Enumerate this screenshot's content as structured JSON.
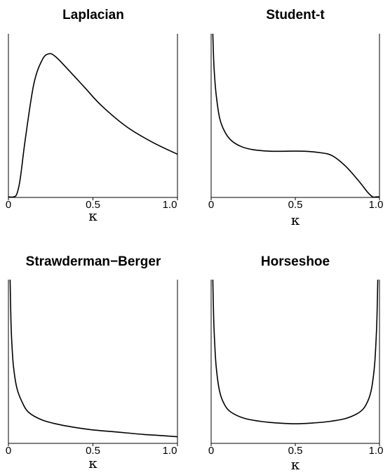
{
  "chart_data": [
    {
      "type": "line",
      "title": "Laplacian",
      "xlabel": "κ",
      "xlim": [
        0,
        1
      ],
      "ylim": [
        0,
        1
      ],
      "x_ticks": [
        0,
        0.5,
        1.0
      ],
      "x_tick_labels": [
        "0",
        "0.5",
        "1.0"
      ],
      "y_axis_labeled": false,
      "series": [
        {
          "x": [
            0.0,
            0.03,
            0.05,
            0.07,
            0.1,
            0.15,
            0.2,
            0.24,
            0.28,
            0.35,
            0.45,
            0.55,
            0.7,
            0.85,
            1.0
          ],
          "y": [
            0.0,
            0.0,
            0.02,
            0.12,
            0.38,
            0.74,
            0.9,
            0.94,
            0.92,
            0.84,
            0.72,
            0.6,
            0.46,
            0.36,
            0.28
          ]
        }
      ]
    },
    {
      "type": "line",
      "title": "Student-t",
      "xlabel": "κ",
      "xlim": [
        0,
        1
      ],
      "ylim": [
        0,
        1
      ],
      "x_ticks": [
        0,
        0.5,
        1.0
      ],
      "x_tick_labels": [
        "0",
        "0.5",
        "1.0"
      ],
      "y_axis_labeled": false,
      "series": [
        {
          "x": [
            0.01,
            0.015,
            0.02,
            0.03,
            0.05,
            0.08,
            0.12,
            0.18,
            0.25,
            0.35,
            0.45,
            0.55,
            0.65,
            0.72,
            0.8,
            0.88,
            0.93,
            0.96,
            0.98,
            1.0
          ],
          "y": [
            1.0,
            0.9,
            0.8,
            0.67,
            0.52,
            0.43,
            0.37,
            0.33,
            0.31,
            0.3,
            0.3,
            0.3,
            0.29,
            0.27,
            0.2,
            0.1,
            0.03,
            0.0,
            0.0,
            0.0
          ]
        }
      ]
    },
    {
      "type": "line",
      "title": "Strawderman−Berger",
      "xlabel": "κ",
      "xlim": [
        0,
        1
      ],
      "ylim": [
        0,
        1
      ],
      "x_ticks": [
        0,
        0.5,
        1.0
      ],
      "x_tick_labels": [
        "0",
        "0.5",
        "1.0"
      ],
      "y_axis_labeled": false,
      "series": [
        {
          "x": [
            0.01,
            0.015,
            0.02,
            0.03,
            0.05,
            0.08,
            0.12,
            0.2,
            0.3,
            0.4,
            0.5,
            0.6,
            0.7,
            0.8,
            0.9,
            1.0
          ],
          "y": [
            1.0,
            0.8,
            0.66,
            0.5,
            0.36,
            0.27,
            0.2,
            0.15,
            0.12,
            0.1,
            0.085,
            0.075,
            0.065,
            0.055,
            0.048,
            0.04
          ]
        }
      ]
    },
    {
      "type": "line",
      "title": "Horseshoe",
      "xlabel": "κ",
      "xlim": [
        0,
        1
      ],
      "ylim": [
        0,
        1
      ],
      "x_ticks": [
        0,
        0.5,
        1.0
      ],
      "x_tick_labels": [
        "0",
        "0.5",
        "1.0"
      ],
      "y_axis_labeled": false,
      "series": [
        {
          "x": [
            0.01,
            0.015,
            0.02,
            0.03,
            0.05,
            0.08,
            0.12,
            0.2,
            0.3,
            0.4,
            0.5,
            0.6,
            0.7,
            0.8,
            0.88,
            0.92,
            0.95,
            0.97,
            0.98,
            0.985,
            0.99
          ],
          "y": [
            1.0,
            0.82,
            0.68,
            0.5,
            0.34,
            0.25,
            0.2,
            0.16,
            0.14,
            0.13,
            0.125,
            0.13,
            0.14,
            0.16,
            0.2,
            0.25,
            0.34,
            0.5,
            0.68,
            0.82,
            1.0
          ]
        }
      ]
    }
  ]
}
